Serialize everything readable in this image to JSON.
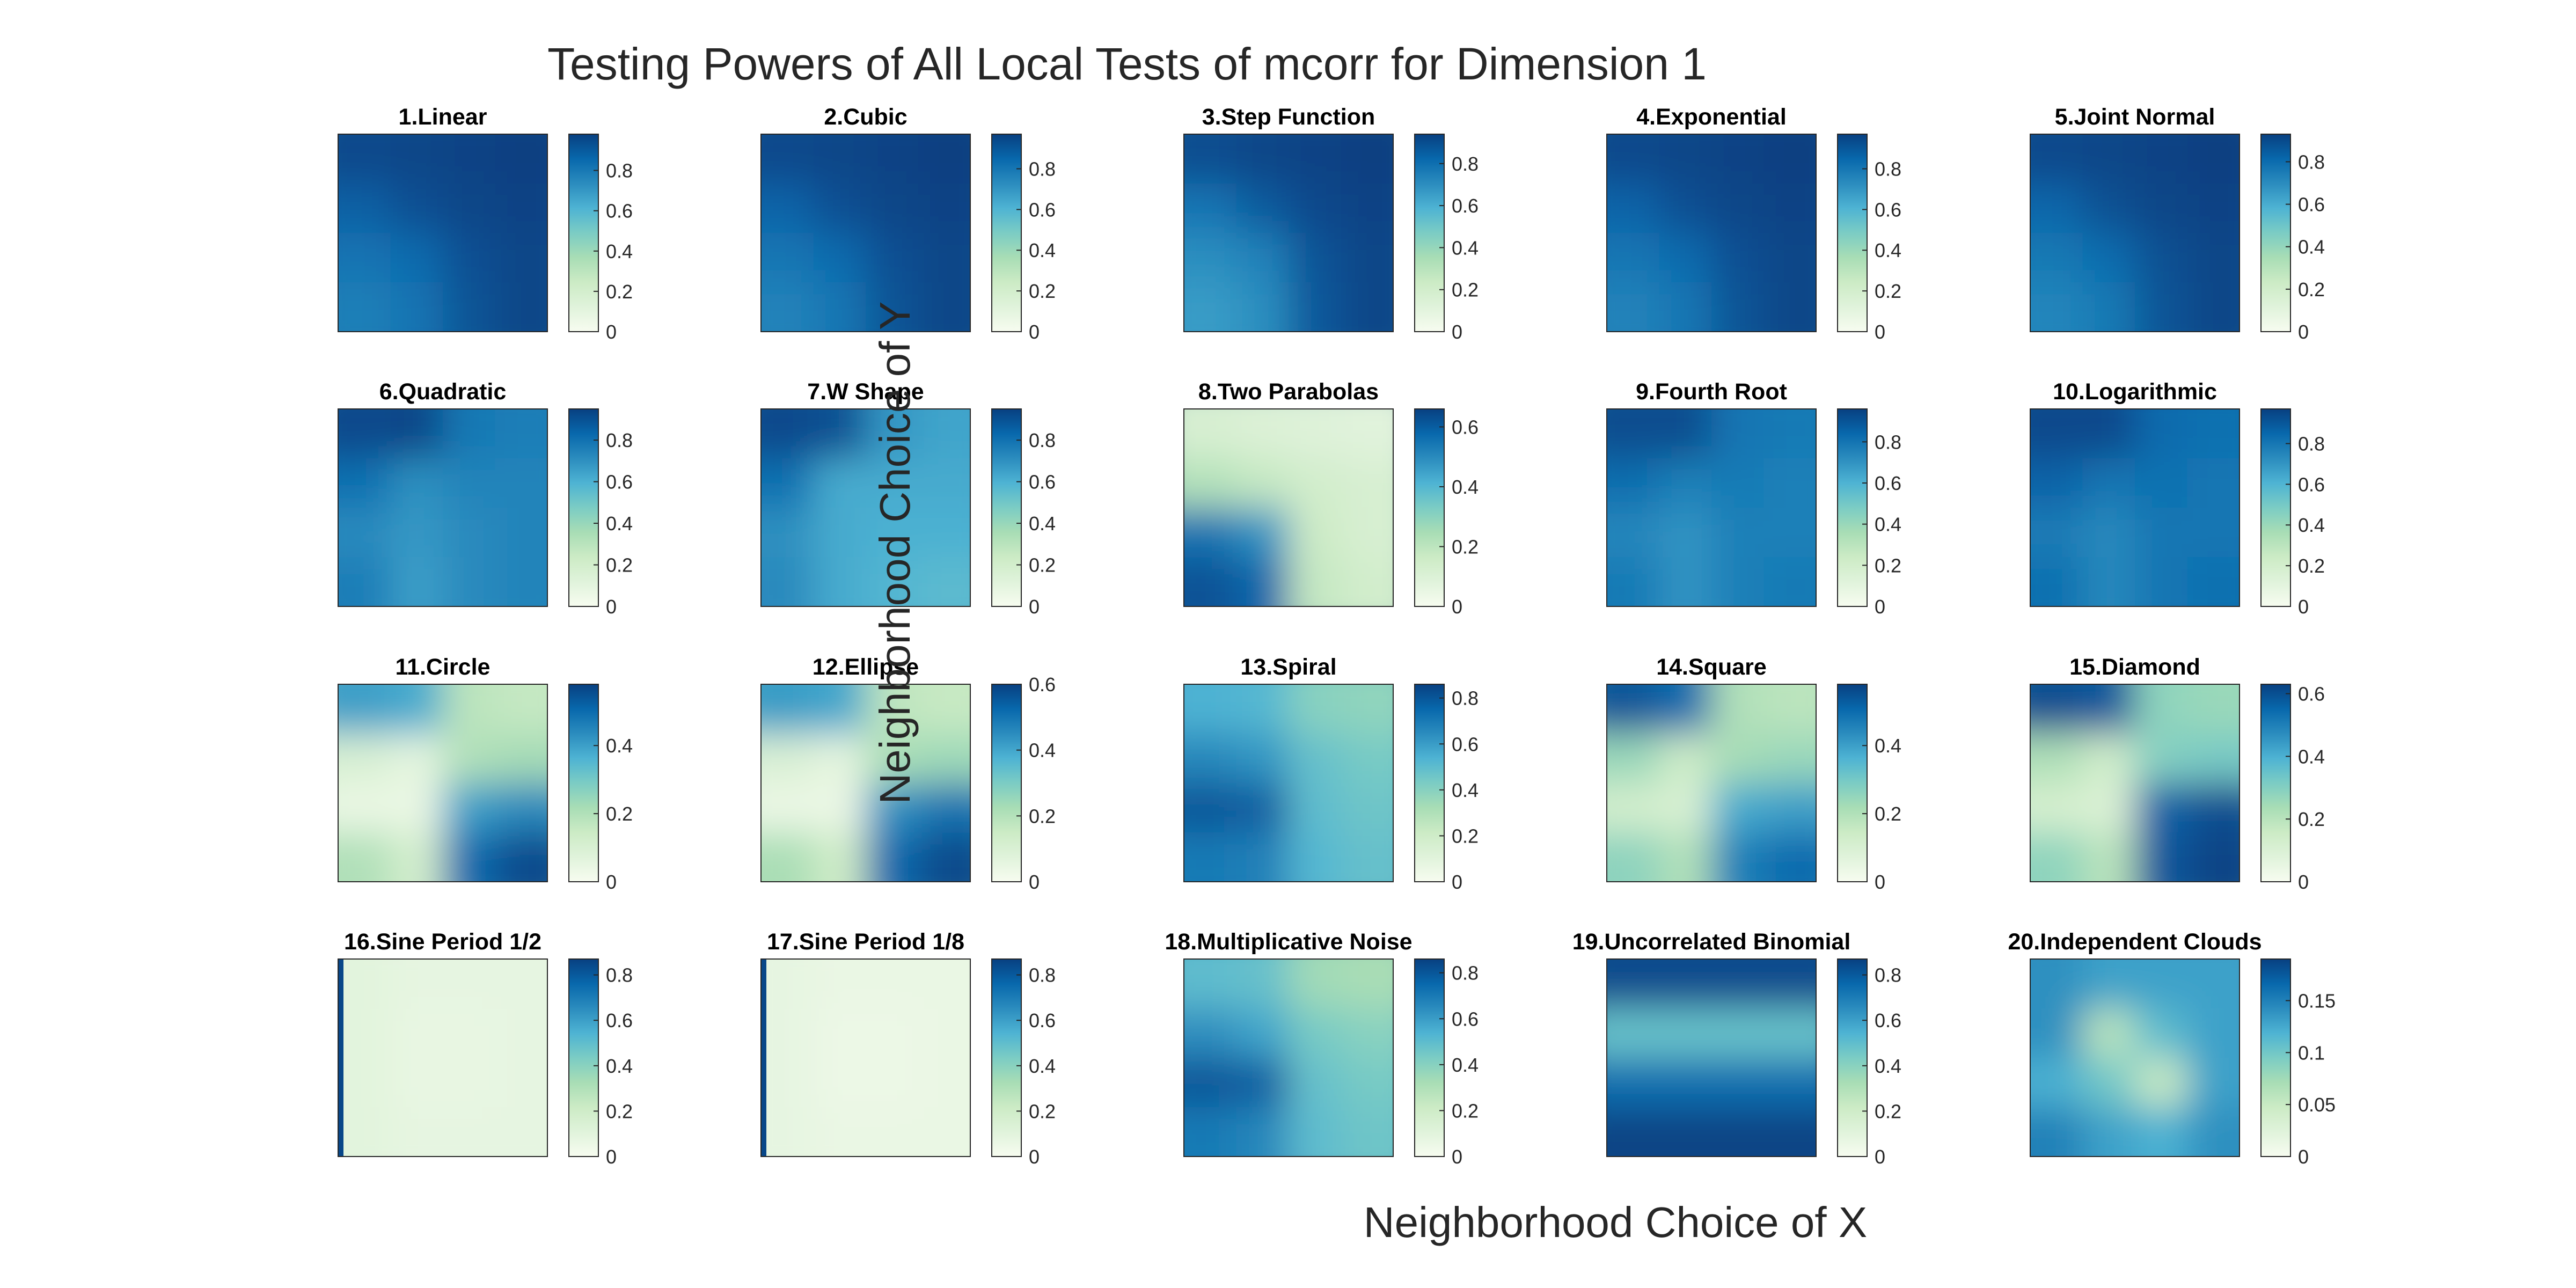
{
  "chart_data": {
    "type": "heatmap",
    "title": "Testing Powers of All Local Tests of mcorr for Dimension 1",
    "xlabel": "Neighborhood Choice of X",
    "ylabel": "Neighborhood Choice of Y",
    "colormap": [
      "#f7fcf0",
      "#e0f3db",
      "#ccebc5",
      "#a8ddb5",
      "#7bccc4",
      "#4eb3d3",
      "#2b8cbe",
      "#0868ac",
      "#084081"
    ],
    "panels": [
      {
        "title": "1.Linear",
        "ticks": [
          "0",
          "0.2",
          "0.4",
          "0.6",
          "0.8"
        ],
        "tick_values": [
          0,
          0.2,
          0.4,
          0.6,
          0.8
        ],
        "clim": [
          0,
          0.98
        ],
        "grid": [
          [
            0.95,
            0.96,
            0.97,
            0.98
          ],
          [
            0.88,
            0.93,
            0.96,
            0.97
          ],
          [
            0.82,
            0.85,
            0.93,
            0.96
          ],
          [
            0.78,
            0.82,
            0.92,
            0.96
          ]
        ]
      },
      {
        "title": "2.Cubic",
        "ticks": [
          "0",
          "0.2",
          "0.4",
          "0.6",
          "0.8"
        ],
        "tick_values": [
          0,
          0.2,
          0.4,
          0.6,
          0.8
        ],
        "clim": [
          0,
          0.97
        ],
        "grid": [
          [
            0.94,
            0.95,
            0.96,
            0.97
          ],
          [
            0.86,
            0.92,
            0.95,
            0.96
          ],
          [
            0.8,
            0.84,
            0.92,
            0.95
          ],
          [
            0.76,
            0.8,
            0.91,
            0.95
          ]
        ]
      },
      {
        "title": "3.Step Function",
        "ticks": [
          "0",
          "0.2",
          "0.4",
          "0.6",
          "0.8"
        ],
        "tick_values": [
          0,
          0.2,
          0.4,
          0.6,
          0.8
        ],
        "clim": [
          0,
          0.94
        ],
        "grid": [
          [
            0.9,
            0.92,
            0.93,
            0.94
          ],
          [
            0.78,
            0.86,
            0.91,
            0.93
          ],
          [
            0.7,
            0.74,
            0.88,
            0.92
          ],
          [
            0.66,
            0.7,
            0.87,
            0.92
          ]
        ]
      },
      {
        "title": "4.Exponential",
        "ticks": [
          "0",
          "0.2",
          "0.4",
          "0.6",
          "0.8"
        ],
        "tick_values": [
          0,
          0.2,
          0.4,
          0.6,
          0.8
        ],
        "clim": [
          0,
          0.97
        ],
        "grid": [
          [
            0.94,
            0.95,
            0.96,
            0.97
          ],
          [
            0.86,
            0.92,
            0.95,
            0.96
          ],
          [
            0.8,
            0.84,
            0.92,
            0.95
          ],
          [
            0.76,
            0.8,
            0.91,
            0.95
          ]
        ]
      },
      {
        "title": "5.Joint Normal",
        "ticks": [
          "0",
          "0.2",
          "0.4",
          "0.6",
          "0.8"
        ],
        "tick_values": [
          0,
          0.2,
          0.4,
          0.6,
          0.8
        ],
        "clim": [
          0,
          0.93
        ],
        "grid": [
          [
            0.9,
            0.91,
            0.92,
            0.93
          ],
          [
            0.82,
            0.88,
            0.91,
            0.92
          ],
          [
            0.76,
            0.8,
            0.88,
            0.91
          ],
          [
            0.72,
            0.76,
            0.87,
            0.91
          ]
        ]
      },
      {
        "title": "6.Quadratic",
        "ticks": [
          "0",
          "0.2",
          "0.4",
          "0.6",
          "0.8"
        ],
        "tick_values": [
          0,
          0.2,
          0.4,
          0.6,
          0.8
        ],
        "clim": [
          0,
          0.95
        ],
        "grid": [
          [
            0.92,
            0.93,
            0.78,
            0.76
          ],
          [
            0.8,
            0.7,
            0.74,
            0.74
          ],
          [
            0.72,
            0.68,
            0.72,
            0.74
          ],
          [
            0.76,
            0.66,
            0.72,
            0.74
          ]
        ]
      },
      {
        "title": "7.W Shape",
        "ticks": [
          "0",
          "0.2",
          "0.4",
          "0.6",
          "0.8"
        ],
        "tick_values": [
          0,
          0.2,
          0.4,
          0.6,
          0.8
        ],
        "clim": [
          0,
          0.95
        ],
        "grid": [
          [
            0.92,
            0.9,
            0.68,
            0.64
          ],
          [
            0.8,
            0.62,
            0.62,
            0.62
          ],
          [
            0.7,
            0.62,
            0.6,
            0.6
          ],
          [
            0.72,
            0.62,
            0.58,
            0.56
          ]
        ]
      },
      {
        "title": "8.Two Parabolas",
        "ticks": [
          "0",
          "0.2",
          "0.4",
          "0.6"
        ],
        "tick_values": [
          0,
          0.2,
          0.4,
          0.6
        ],
        "clim": [
          0,
          0.66
        ],
        "grid": [
          [
            0.12,
            0.1,
            0.09,
            0.08
          ],
          [
            0.22,
            0.18,
            0.14,
            0.12
          ],
          [
            0.55,
            0.48,
            0.16,
            0.12
          ],
          [
            0.62,
            0.58,
            0.18,
            0.14
          ]
        ]
      },
      {
        "title": "9.Fourth Root",
        "ticks": [
          "0",
          "0.2",
          "0.4",
          "0.6",
          "0.8"
        ],
        "tick_values": [
          0,
          0.2,
          0.4,
          0.6,
          0.8
        ],
        "clim": [
          0,
          0.96
        ],
        "grid": [
          [
            0.92,
            0.92,
            0.8,
            0.78
          ],
          [
            0.82,
            0.76,
            0.78,
            0.76
          ],
          [
            0.74,
            0.7,
            0.76,
            0.76
          ],
          [
            0.78,
            0.7,
            0.76,
            0.78
          ]
        ]
      },
      {
        "title": "10.Logarithmic",
        "ticks": [
          "0",
          "0.2",
          "0.4",
          "0.6",
          "0.8"
        ],
        "tick_values": [
          0,
          0.2,
          0.4,
          0.6,
          0.8
        ],
        "clim": [
          0,
          0.97
        ],
        "grid": [
          [
            0.94,
            0.94,
            0.84,
            0.82
          ],
          [
            0.86,
            0.8,
            0.82,
            0.8
          ],
          [
            0.78,
            0.74,
            0.8,
            0.8
          ],
          [
            0.82,
            0.74,
            0.8,
            0.82
          ]
        ]
      },
      {
        "title": "11.Circle",
        "ticks": [
          "0",
          "0.2",
          "0.4"
        ],
        "tick_values": [
          0,
          0.2,
          0.4
        ],
        "clim": [
          0,
          0.58
        ],
        "grid": [
          [
            0.4,
            0.38,
            0.18,
            0.16
          ],
          [
            0.1,
            0.06,
            0.2,
            0.22
          ],
          [
            0.04,
            0.04,
            0.4,
            0.44
          ],
          [
            0.2,
            0.12,
            0.5,
            0.56
          ]
        ]
      },
      {
        "title": "12.Ellipse",
        "ticks": [
          "0",
          "0.2",
          "0.4",
          "0.6"
        ],
        "tick_values": [
          0,
          0.2,
          0.4,
          0.6
        ],
        "clim": [
          0,
          0.6
        ],
        "grid": [
          [
            0.42,
            0.4,
            0.18,
            0.16
          ],
          [
            0.1,
            0.06,
            0.22,
            0.24
          ],
          [
            0.04,
            0.04,
            0.44,
            0.5
          ],
          [
            0.22,
            0.14,
            0.52,
            0.58
          ]
        ]
      },
      {
        "title": "13.Spiral",
        "ticks": [
          "0",
          "0.2",
          "0.4",
          "0.6",
          "0.8"
        ],
        "tick_values": [
          0,
          0.2,
          0.4,
          0.6,
          0.8
        ],
        "clim": [
          0,
          0.86
        ],
        "grid": [
          [
            0.54,
            0.52,
            0.4,
            0.38
          ],
          [
            0.66,
            0.62,
            0.48,
            0.44
          ],
          [
            0.8,
            0.78,
            0.5,
            0.46
          ],
          [
            0.7,
            0.68,
            0.52,
            0.48
          ]
        ]
      },
      {
        "title": "14.Square",
        "ticks": [
          "0",
          "0.2",
          "0.4"
        ],
        "tick_values": [
          0,
          0.2,
          0.4
        ],
        "clim": [
          0,
          0.58
        ],
        "grid": [
          [
            0.54,
            0.5,
            0.2,
            0.18
          ],
          [
            0.24,
            0.14,
            0.22,
            0.24
          ],
          [
            0.12,
            0.1,
            0.38,
            0.4
          ],
          [
            0.26,
            0.2,
            0.46,
            0.5
          ]
        ]
      },
      {
        "title": "15.Diamond",
        "ticks": [
          "0",
          "0.2",
          "0.4",
          "0.6"
        ],
        "tick_values": [
          0,
          0.2,
          0.4,
          0.6
        ],
        "clim": [
          0,
          0.63
        ],
        "grid": [
          [
            0.6,
            0.58,
            0.28,
            0.26
          ],
          [
            0.22,
            0.14,
            0.3,
            0.32
          ],
          [
            0.12,
            0.1,
            0.56,
            0.6
          ],
          [
            0.28,
            0.2,
            0.58,
            0.62
          ]
        ]
      },
      {
        "title": "16.Sine Period 1/2",
        "ticks": [
          "0",
          "0.2",
          "0.4",
          "0.6",
          "0.8"
        ],
        "tick_values": [
          0,
          0.2,
          0.4,
          0.6,
          0.8
        ],
        "clim": [
          0,
          0.87
        ],
        "grid": [
          [
            0.1,
            0.08,
            0.08,
            0.08
          ],
          [
            0.1,
            0.07,
            0.07,
            0.08
          ],
          [
            0.1,
            0.07,
            0.07,
            0.08
          ],
          [
            0.1,
            0.08,
            0.08,
            0.08
          ]
        ],
        "left_edge": 0.85
      },
      {
        "title": "17.Sine Period 1/8",
        "ticks": [
          "0",
          "0.2",
          "0.4",
          "0.6",
          "0.8"
        ],
        "tick_values": [
          0,
          0.2,
          0.4,
          0.6,
          0.8
        ],
        "clim": [
          0,
          0.87
        ],
        "grid": [
          [
            0.08,
            0.06,
            0.06,
            0.06
          ],
          [
            0.08,
            0.05,
            0.05,
            0.06
          ],
          [
            0.08,
            0.05,
            0.05,
            0.06
          ],
          [
            0.08,
            0.06,
            0.06,
            0.06
          ]
        ],
        "left_edge": 0.85
      },
      {
        "title": "18.Multiplicative Noise",
        "ticks": [
          "0",
          "0.2",
          "0.4",
          "0.6",
          "0.8"
        ],
        "tick_values": [
          0,
          0.2,
          0.4,
          0.6,
          0.8
        ],
        "clim": [
          0,
          0.86
        ],
        "grid": [
          [
            0.5,
            0.48,
            0.34,
            0.32
          ],
          [
            0.64,
            0.58,
            0.44,
            0.4
          ],
          [
            0.8,
            0.78,
            0.48,
            0.44
          ],
          [
            0.7,
            0.66,
            0.5,
            0.46
          ]
        ]
      },
      {
        "title": "19.Uncorrelated Binomial",
        "ticks": [
          "0",
          "0.2",
          "0.4",
          "0.6",
          "0.8"
        ],
        "tick_values": [
          0,
          0.2,
          0.4,
          0.6,
          0.8
        ],
        "clim": [
          0,
          0.87
        ],
        "grid": [
          [
            0.84,
            0.84,
            0.84,
            0.84
          ],
          [
            0.48,
            0.48,
            0.48,
            0.48
          ],
          [
            0.74,
            0.74,
            0.74,
            0.74
          ],
          [
            0.86,
            0.86,
            0.86,
            0.86
          ]
        ]
      },
      {
        "title": "20.Independent Clouds",
        "ticks": [
          "0",
          "0.05",
          "0.1",
          "0.15"
        ],
        "tick_values": [
          0,
          0.05,
          0.1,
          0.15
        ],
        "clim": [
          0,
          0.19
        ],
        "grid": [
          [
            0.14,
            0.13,
            0.13,
            0.13
          ],
          [
            0.14,
            0.06,
            0.11,
            0.13
          ],
          [
            0.12,
            0.1,
            0.05,
            0.13
          ],
          [
            0.15,
            0.13,
            0.12,
            0.14
          ]
        ]
      }
    ]
  }
}
